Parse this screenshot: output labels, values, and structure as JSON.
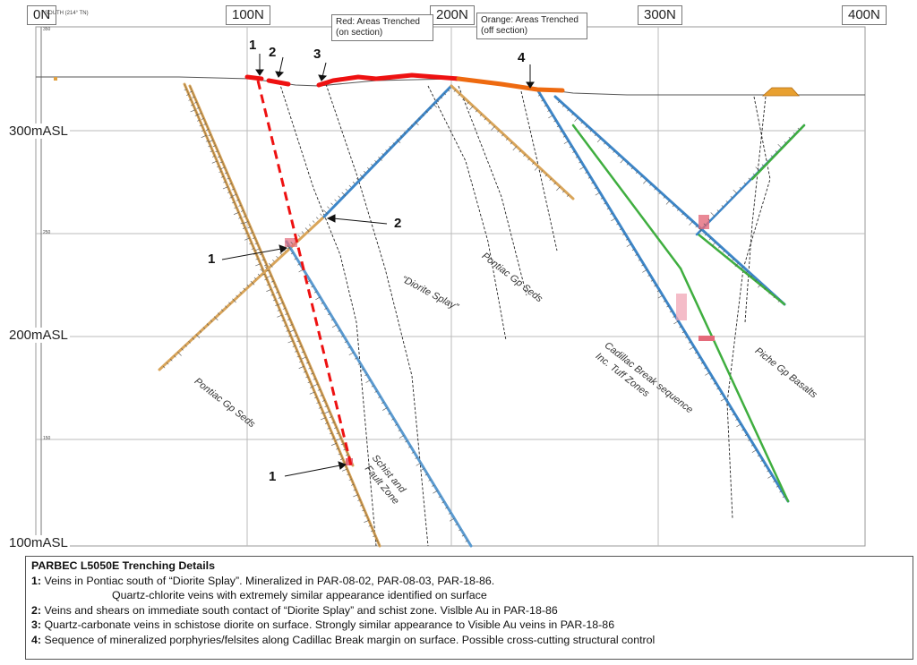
{
  "section": {
    "orientation": "SOUTH (214° TN)",
    "northings": [
      "0N",
      "100N",
      "200N",
      "300N",
      "400N"
    ],
    "elevations": [
      "300mASL",
      "200mASL",
      "100mASL"
    ],
    "minor_elevations": [
      "350",
      "250",
      "150"
    ]
  },
  "notes": {
    "red": "Red: Areas Trenched (on section)",
    "orange": "Orange: Areas Trenched (off section)"
  },
  "units": [
    {
      "label": "Pontiac Gp Seds",
      "id": "upper"
    },
    {
      "label": "“Diorite Splay”",
      "id": "diorite"
    },
    {
      "label": "Cadillac Break sequence",
      "id": "cadillac"
    },
    {
      "label": "Inc. Tuff Zones",
      "id": "tuff"
    },
    {
      "label": "Piche Gp Basalts",
      "id": "piche"
    },
    {
      "label": "Pontiac Gp Seds",
      "id": "lower"
    },
    {
      "label": "Schist and",
      "id": "schist1"
    },
    {
      "label": "Fault Zone",
      "id": "schist2"
    }
  ],
  "callouts": [
    "1",
    "2",
    "3",
    "4",
    "2",
    "1",
    "1"
  ],
  "legend": {
    "title": "PARBEC L5050E Trenching Details",
    "items": [
      {
        "num": "1:",
        "text": "Veins in Pontiac south of “Diorite Splay”. Mineralized in PAR-08-02, PAR-08-03, PAR-18-86."
      },
      {
        "num": "",
        "text": "Quartz-chlorite veins with extremely similar appearance identified on surface"
      },
      {
        "num": "2:",
        "text": "Veins and shears on immediate south contact of “Diorite Splay” and schist zone. Vislble Au in PAR-18-86"
      },
      {
        "num": "3:",
        "text": "Quartz-carbonate veins in schistose diorite on surface. Strongly similar appearance to Visible Au veins in PAR-18-86"
      },
      {
        "num": "4:",
        "text": "Sequence of mineralized porphyries/felsites along Cadillac Break margin on surface. Possible cross-cutting structural control"
      }
    ]
  },
  "colors": {
    "trench_on_section": "#ee1111",
    "trench_off_section": "#ee6a10",
    "drill_tan": "#d9a55a",
    "drill_blue": "#3d86c8",
    "drill_green": "#3fae3f",
    "grid": "#b8b8b8"
  }
}
